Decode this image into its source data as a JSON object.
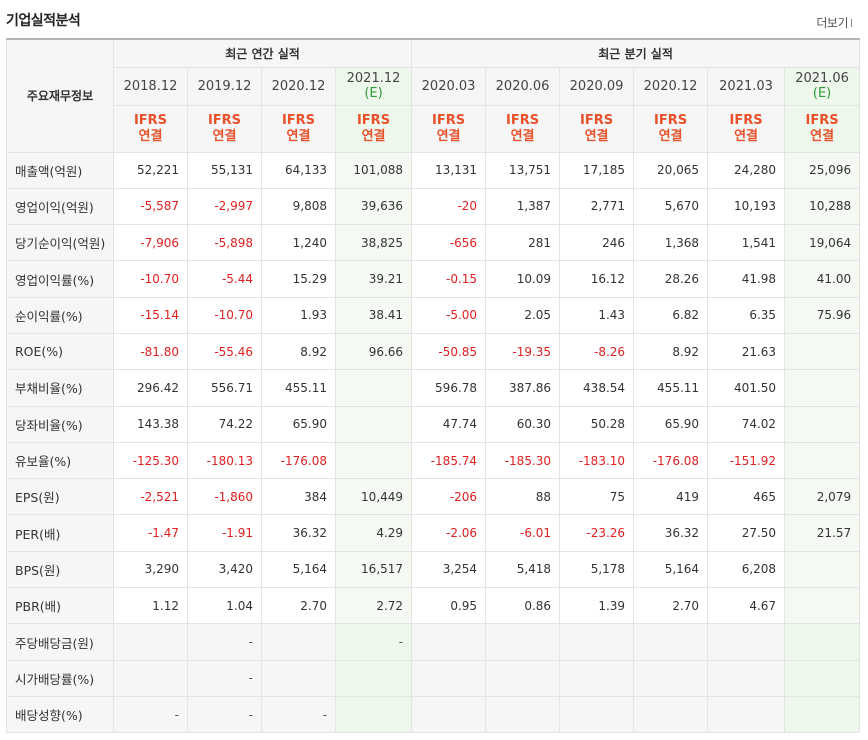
{
  "section": {
    "title": "기업실적분석",
    "more_label": "더보기"
  },
  "table": {
    "corner_label": "주요재무정보",
    "annual_group": "최근 연간 실적",
    "quarter_group": "최근 분기 실적",
    "estimate_mark": "(E)",
    "periods": [
      {
        "label": "2018.12",
        "estimate": false
      },
      {
        "label": "2019.12",
        "estimate": false
      },
      {
        "label": "2020.12",
        "estimate": false
      },
      {
        "label": "2021.12",
        "estimate": true
      },
      {
        "label": "2020.03",
        "estimate": false
      },
      {
        "label": "2020.06",
        "estimate": false
      },
      {
        "label": "2020.09",
        "estimate": false
      },
      {
        "label": "2020.12",
        "estimate": false
      },
      {
        "label": "2021.03",
        "estimate": false
      },
      {
        "label": "2021.06",
        "estimate": true
      }
    ],
    "standard_line1": "IFRS",
    "standard_line2": "연결",
    "rows": [
      {
        "label": "매출액(억원)",
        "values": [
          "52,221",
          "55,131",
          "64,133",
          "101,088",
          "13,131",
          "13,751",
          "17,185",
          "20,065",
          "24,280",
          "25,096"
        ]
      },
      {
        "label": "영업이익(억원)",
        "values": [
          "-5,587",
          "-2,997",
          "9,808",
          "39,636",
          "-20",
          "1,387",
          "2,771",
          "5,670",
          "10,193",
          "10,288"
        ]
      },
      {
        "label": "당기순이익(억원)",
        "values": [
          "-7,906",
          "-5,898",
          "1,240",
          "38,825",
          "-656",
          "281",
          "246",
          "1,368",
          "1,541",
          "19,064"
        ]
      },
      {
        "label": "영업이익률(%)",
        "values": [
          "-10.70",
          "-5.44",
          "15.29",
          "39.21",
          "-0.15",
          "10.09",
          "16.12",
          "28.26",
          "41.98",
          "41.00"
        ]
      },
      {
        "label": "순이익률(%)",
        "values": [
          "-15.14",
          "-10.70",
          "1.93",
          "38.41",
          "-5.00",
          "2.05",
          "1.43",
          "6.82",
          "6.35",
          "75.96"
        ]
      },
      {
        "label": "ROE(%)",
        "values": [
          "-81.80",
          "-55.46",
          "8.92",
          "96.66",
          "-50.85",
          "-19.35",
          "-8.26",
          "8.92",
          "21.63",
          ""
        ]
      },
      {
        "label": "부채비율(%)",
        "values": [
          "296.42",
          "556.71",
          "455.11",
          "",
          "596.78",
          "387.86",
          "438.54",
          "455.11",
          "401.50",
          ""
        ]
      },
      {
        "label": "당좌비율(%)",
        "values": [
          "143.38",
          "74.22",
          "65.90",
          "",
          "47.74",
          "60.30",
          "50.28",
          "65.90",
          "74.02",
          ""
        ]
      },
      {
        "label": "유보율(%)",
        "values": [
          "-125.30",
          "-180.13",
          "-176.08",
          "",
          "-185.74",
          "-185.30",
          "-183.10",
          "-176.08",
          "-151.92",
          ""
        ]
      },
      {
        "label": "EPS(원)",
        "values": [
          "-2,521",
          "-1,860",
          "384",
          "10,449",
          "-206",
          "88",
          "75",
          "419",
          "465",
          "2,079"
        ]
      },
      {
        "label": "PER(배)",
        "values": [
          "-1.47",
          "-1.91",
          "36.32",
          "4.29",
          "-2.06",
          "-6.01",
          "-23.26",
          "36.32",
          "27.50",
          "21.57"
        ]
      },
      {
        "label": "BPS(원)",
        "values": [
          "3,290",
          "3,420",
          "5,164",
          "16,517",
          "3,254",
          "5,418",
          "5,178",
          "5,164",
          "6,208",
          ""
        ]
      },
      {
        "label": "PBR(배)",
        "values": [
          "1.12",
          "1.04",
          "2.70",
          "2.72",
          "0.95",
          "0.86",
          "1.39",
          "2.70",
          "4.67",
          ""
        ]
      },
      {
        "label": "주당배당금(원)",
        "values": [
          "",
          "-",
          "",
          "-",
          "",
          "",
          "",
          "",
          "",
          ""
        ]
      },
      {
        "label": "시가배당률(%)",
        "values": [
          "",
          "-",
          "",
          "",
          "",
          "",
          "",
          "",
          "",
          ""
        ]
      },
      {
        "label": "배당성향(%)",
        "values": [
          "-",
          "-",
          "-",
          "",
          "",
          "",
          "",
          "",
          "",
          ""
        ]
      }
    ]
  },
  "colors": {
    "negative": "#e02020",
    "standard": "#e8512a",
    "estimate_mark": "#2e9b3a",
    "estimate_bg": "#eef7ec",
    "header_bg": "#f6f6f6"
  }
}
